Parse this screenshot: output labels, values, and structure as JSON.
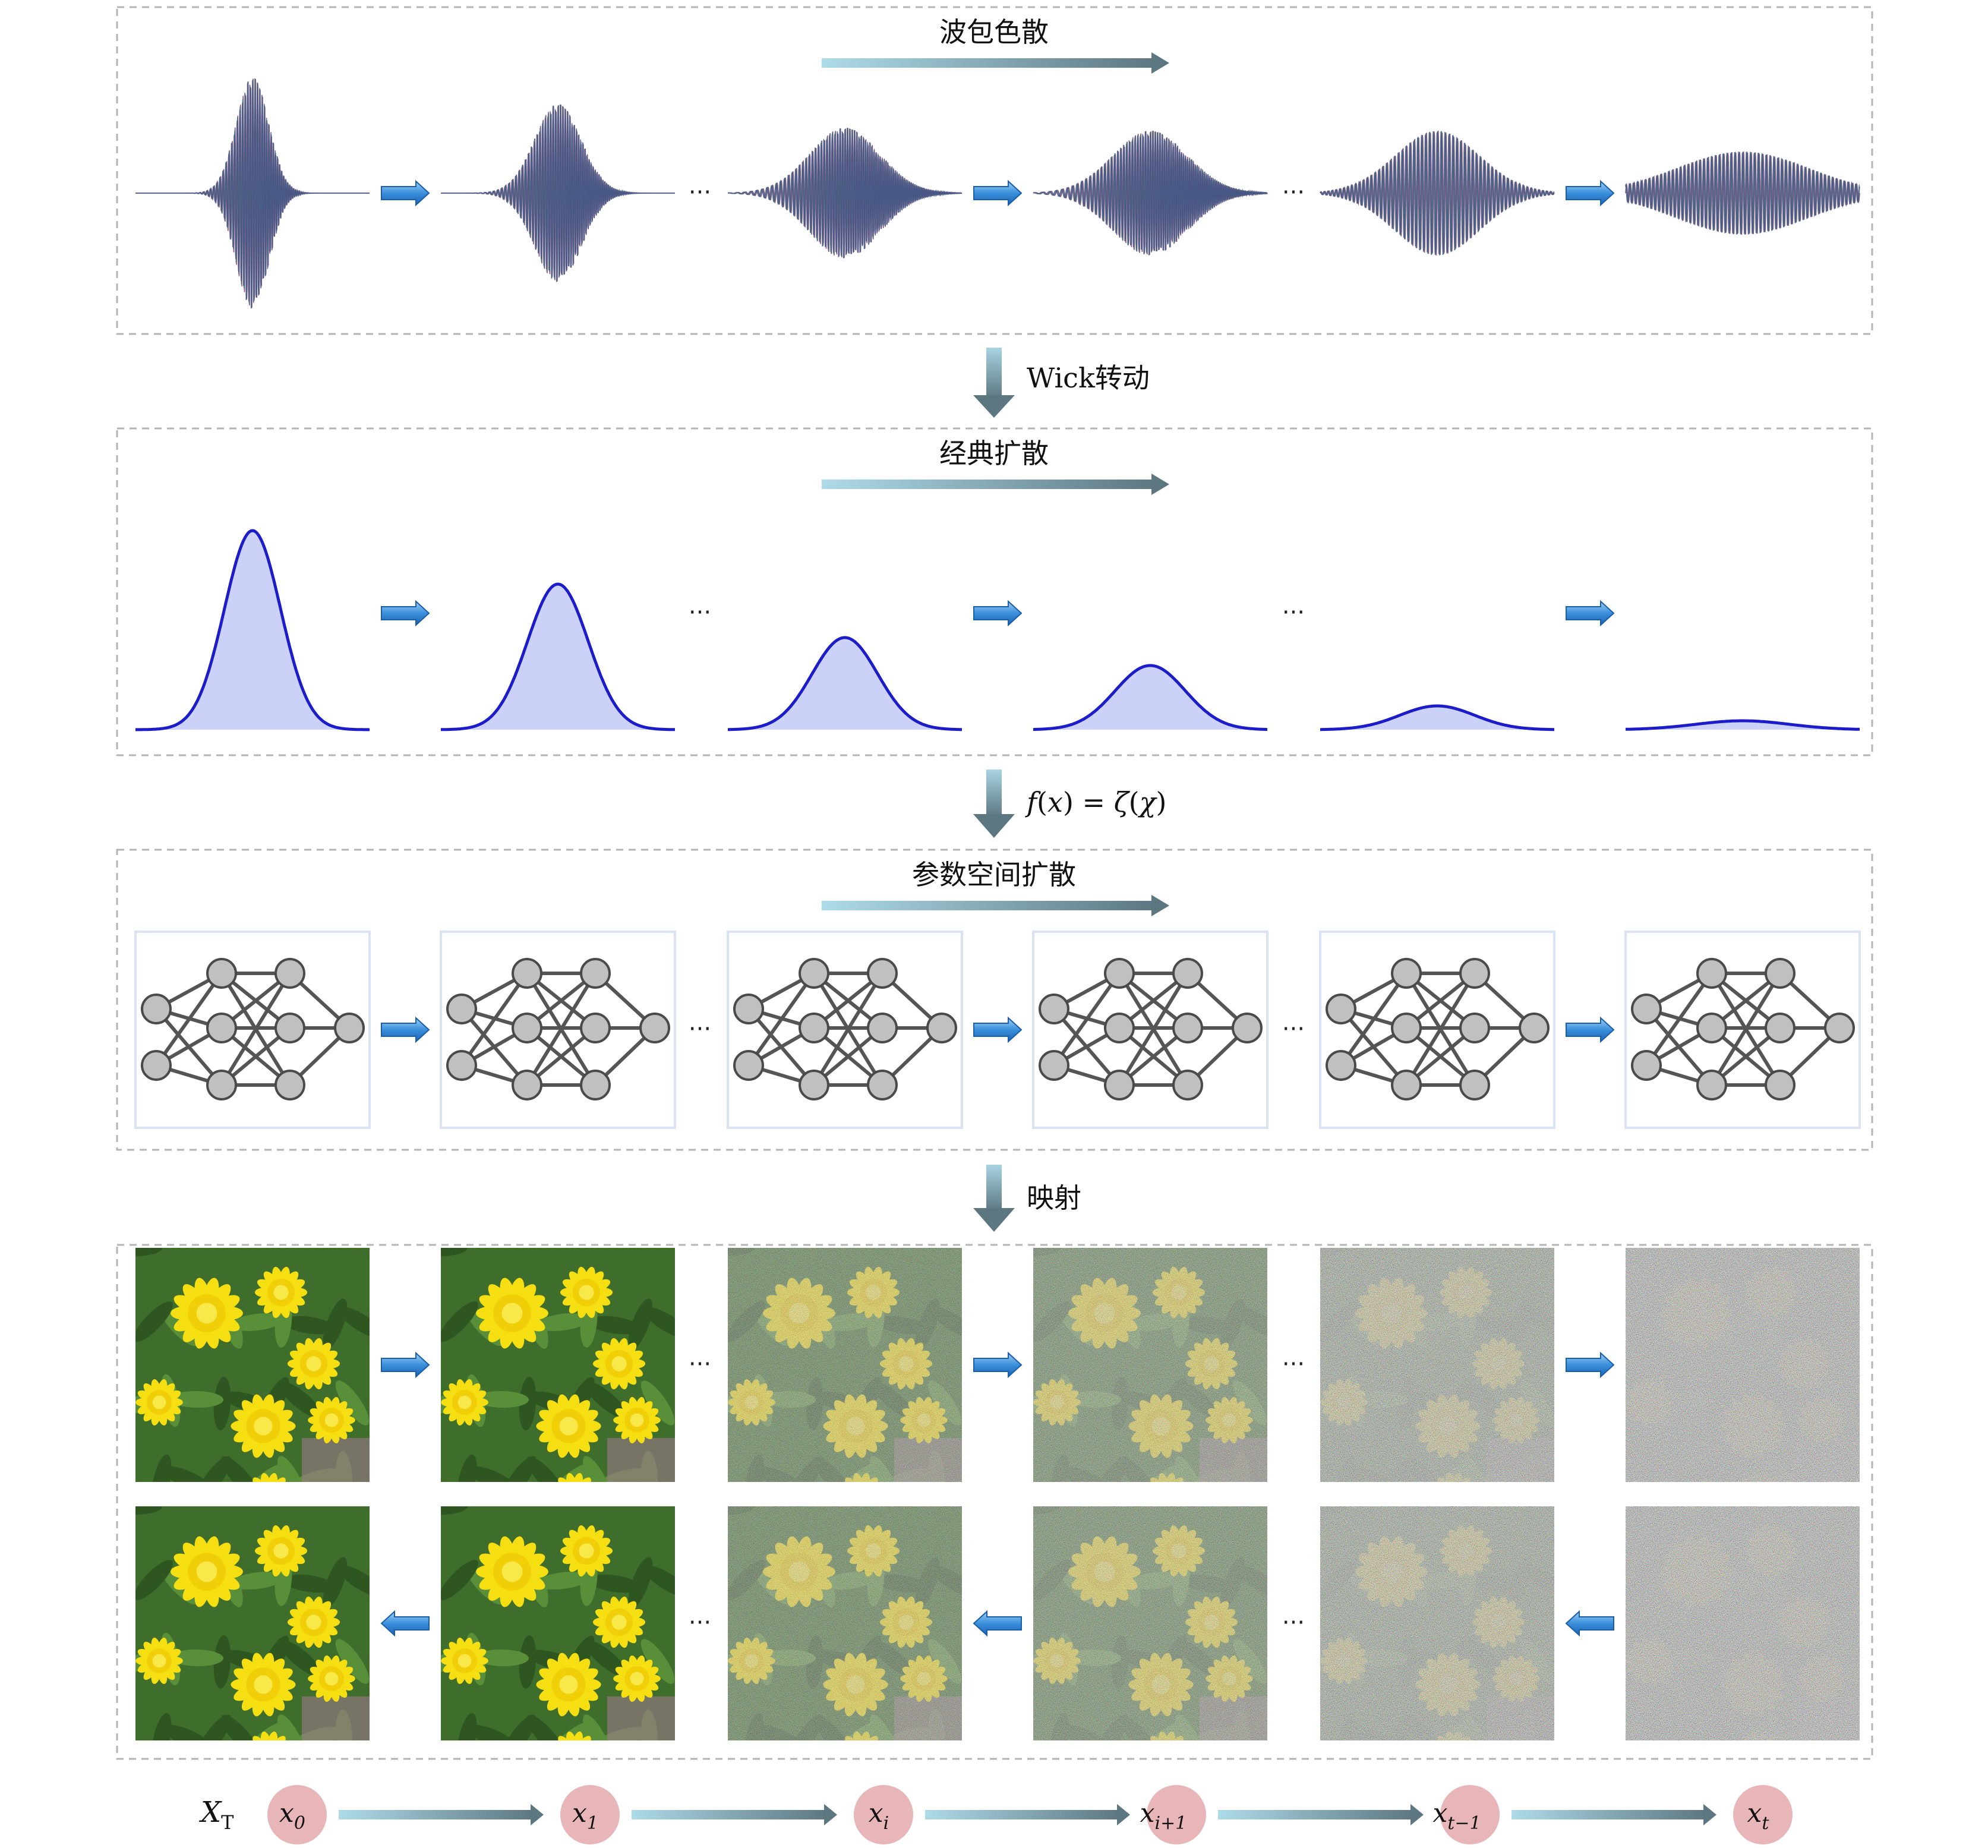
{
  "sections": {
    "wave": {
      "title": "波包色散"
    },
    "classical": {
      "title": "经典扩散"
    },
    "param": {
      "title": "参数空间扩散"
    }
  },
  "transitions": {
    "t1": "Wick转动",
    "t2": {
      "f": "f",
      "x": "x",
      "eq": " = ",
      "zeta": "ζ",
      "chi": "χ"
    },
    "t3": "映射"
  },
  "ellipsis": "···",
  "bottom": {
    "prefix": {
      "main": "X",
      "sub": "T"
    },
    "nodes": [
      {
        "main": "x",
        "sub": "0"
      },
      {
        "main": "x",
        "sub": "1"
      },
      {
        "main": "x",
        "sub": "i"
      },
      {
        "main": "x",
        "sub": "i+1"
      },
      {
        "main": "x",
        "sub": "t−1"
      },
      {
        "main": "x",
        "sub": "t"
      }
    ]
  },
  "colors": {
    "frame_dash": "#b4b4b4",
    "arrow_light": "#a9d8e6",
    "arrow_dark": "#5f7c86",
    "blue_arrow": "#2b7fce",
    "curve": "#1c1cc8",
    "curve_fill": "#ccd2f7",
    "node_fill": "#c0c0c0",
    "node_edge": "#4a4a4a",
    "bubble": "#e8b5b8"
  },
  "icons": {
    "flow_arrow": "gradient-right-arrow-icon",
    "small_arrow": "blue-block-arrow-icon",
    "down_arrow": "gradient-down-arrow-icon"
  }
}
